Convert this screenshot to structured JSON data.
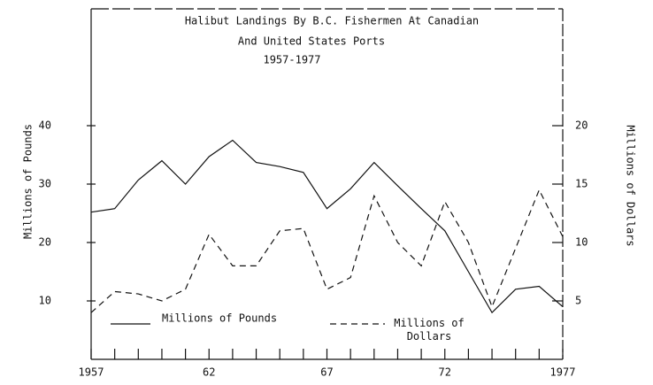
{
  "chart_data": {
    "type": "line",
    "title": [
      "Halibut Landings By B.C. Fishermen At Canadian",
      "And United States Ports",
      "1957-1977"
    ],
    "ylabel": "Millions of Pounds",
    "y2label": "Millions of Dollars",
    "x": [
      1957,
      1958,
      1959,
      1960,
      1961,
      1962,
      1963,
      1964,
      1965,
      1966,
      1967,
      1968,
      1969,
      1970,
      1971,
      1972,
      1973,
      1974,
      1975,
      1976,
      1977
    ],
    "xlim": [
      1957,
      1977
    ],
    "xticks": [
      1957,
      {
        "value": 1962,
        "label": "62"
      },
      {
        "value": 1967,
        "label": "67"
      },
      {
        "value": 1972,
        "label": "72"
      },
      1977
    ],
    "xminorticks": [
      1958,
      1959,
      1960,
      1961,
      1963,
      1964,
      1965,
      1966,
      1968,
      1969,
      1970,
      1971,
      1973,
      1974,
      1975,
      1976
    ],
    "ylim": [
      0,
      60
    ],
    "yticks": [
      10,
      20,
      30,
      40
    ],
    "y2lim": [
      0,
      30
    ],
    "y2ticks": [
      5,
      10,
      15,
      20
    ],
    "series": [
      {
        "name": "Millions of Pounds",
        "color": "#111111",
        "dash": "solid",
        "values": [
          25.2,
          25.8,
          30.7,
          34,
          30,
          34.7,
          37.5,
          33.7,
          33,
          32,
          25.8,
          29.2,
          33.7,
          29.7,
          25.8,
          22,
          15,
          8,
          12,
          12.5,
          9
        ]
      },
      {
        "name": "Millions of Dollars",
        "color": "#111111",
        "dash": "dashed",
        "axis": "y2",
        "values": [
          4,
          5.8,
          5.6,
          5,
          6,
          10.7,
          8,
          8,
          11,
          11.2,
          6,
          7,
          14,
          10,
          8,
          13.5,
          10,
          4.5,
          9.5,
          14.5,
          10.5
        ]
      }
    ]
  }
}
